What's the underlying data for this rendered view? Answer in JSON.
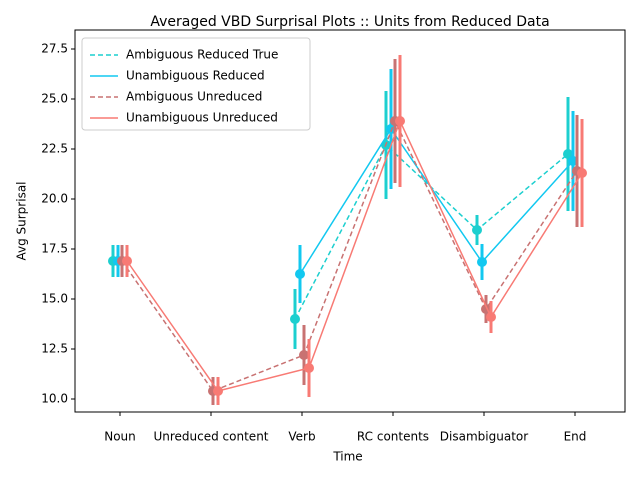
{
  "chart_data": {
    "type": "pointplot",
    "title": "Averaged VBD Surprisal Plots :: Units from Reduced Data",
    "x_label": "Time",
    "y_label": "Avg Surprisal",
    "categories": [
      "Noun",
      "Unreduced content",
      "Verb",
      "RC contents",
      "Disambiguator",
      "End"
    ],
    "ylim": [
      9.35,
      28.45
    ],
    "yticks": [
      {
        "value": 10,
        "label": "10.0"
      },
      {
        "value": 12.5,
        "label": "12.5"
      },
      {
        "value": 15,
        "label": "15.0"
      },
      {
        "value": 17.5,
        "label": "17.5"
      },
      {
        "value": 20,
        "label": "20.0"
      },
      {
        "value": 22.5,
        "label": "22.5"
      },
      {
        "value": 25,
        "label": "25.0"
      },
      {
        "value": 27.5,
        "label": "27.5"
      }
    ],
    "legend": "upper left",
    "series": [
      {
        "name": "Ambiguous Reduced True",
        "color": "#1ccfcf",
        "dash": true,
        "values": [
          16.9,
          null,
          14.0,
          22.7,
          18.45,
          22.25
        ],
        "errors": [
          0.8,
          null,
          1.5,
          2.7,
          0.75,
          2.85
        ]
      },
      {
        "name": "Unambiguous Reduced",
        "color": "#12c8f0",
        "dash": false,
        "values": [
          16.9,
          null,
          16.25,
          23.5,
          16.85,
          21.9
        ],
        "errors": [
          0.8,
          null,
          1.45,
          3.0,
          0.9,
          2.5
        ]
      },
      {
        "name": "Ambiguous Unreduced",
        "color": "#c87272",
        "dash": true,
        "values": [
          16.9,
          10.4,
          12.2,
          23.9,
          14.5,
          21.4
        ],
        "errors": [
          0.8,
          0.7,
          1.5,
          3.1,
          0.7,
          2.8
        ]
      },
      {
        "name": "Unambiguous Unreduced",
        "color": "#f87a74",
        "dash": false,
        "values": [
          16.9,
          10.4,
          11.55,
          23.9,
          14.1,
          21.3
        ],
        "errors": [
          0.8,
          0.7,
          1.45,
          3.3,
          0.8,
          2.7
        ]
      }
    ]
  }
}
